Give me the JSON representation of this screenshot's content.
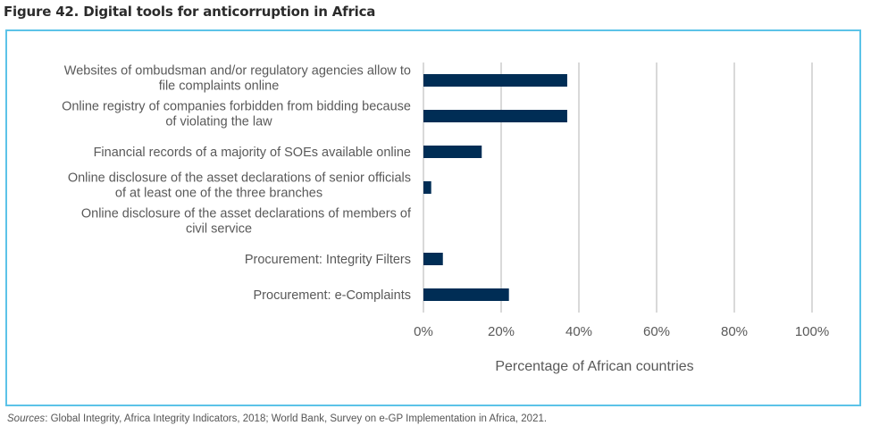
{
  "figure": {
    "title": "Figure 42. Digital tools for anticorruption in Africa",
    "sources_label": "Sources",
    "sources_text": ": Global Integrity, Africa Integrity Indicators, 2018; World Bank, Survey on e-GP Implementation in Africa, 2021."
  },
  "colors": {
    "bar": "#002d55",
    "grid": "#d9d9d9",
    "frame": "#5cc3e8",
    "text": "#595959"
  },
  "chart_data": {
    "type": "bar",
    "orientation": "horizontal",
    "title": "Figure 42. Digital tools for anticorruption in Africa",
    "xlabel": "Percentage of African countries",
    "ylabel": "",
    "xlim": [
      0,
      100
    ],
    "grid": true,
    "xticks": [
      0,
      20,
      40,
      60,
      80,
      100
    ],
    "xtick_labels": [
      "0%",
      "20%",
      "40%",
      "60%",
      "80%",
      "100%"
    ],
    "categories": [
      [
        "Websites of ombudsman and/or regulatory agencies allow to",
        "file complaints online"
      ],
      [
        "Online registry of companies forbidden from bidding because",
        "of violating the law"
      ],
      [
        "Financial records of a majority of SOEs available online"
      ],
      [
        "Online disclosure of the asset declarations of senior officials",
        "of at least one of the three branches"
      ],
      [
        "Online disclosure of the asset declarations of members of",
        "civil service"
      ],
      [
        "Procurement: Integrity Filters"
      ],
      [
        "Procurement: e-Complaints"
      ]
    ],
    "values": [
      37,
      37,
      15,
      2,
      0,
      5,
      22
    ],
    "unit": "%"
  }
}
